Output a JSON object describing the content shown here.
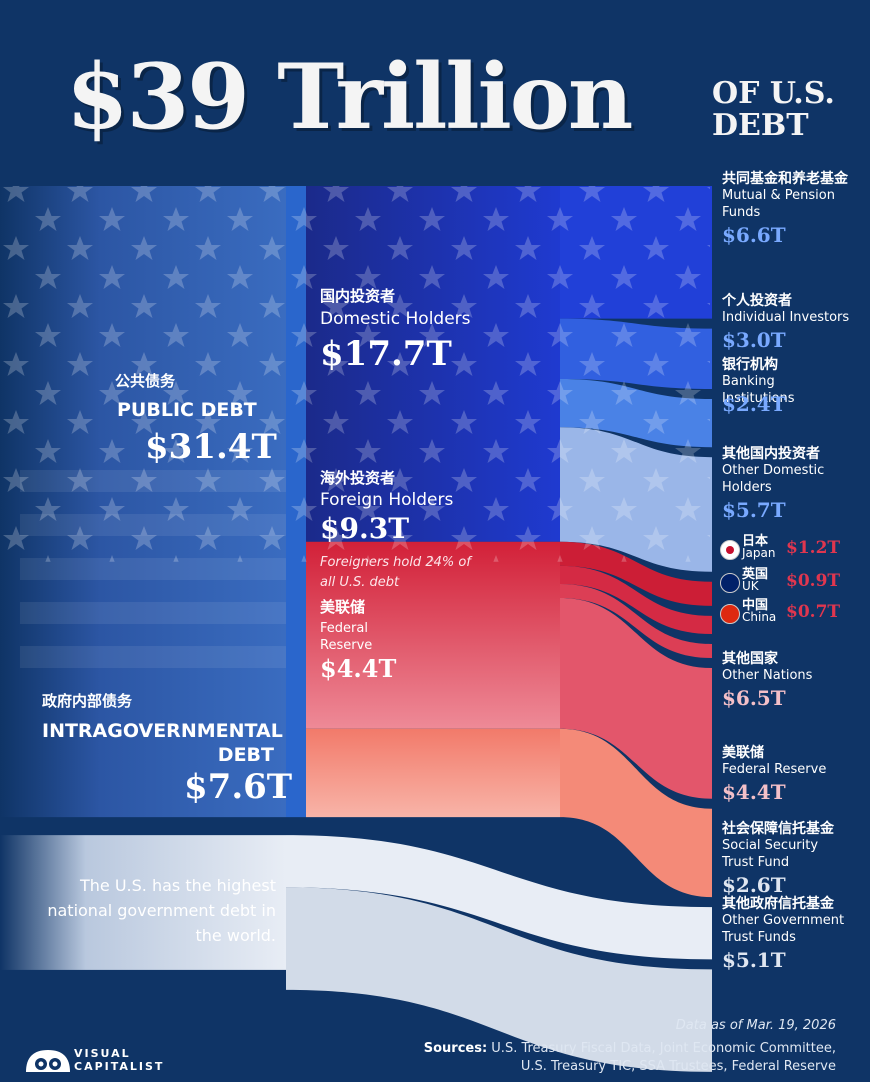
{
  "title": {
    "main": "$39 Trillion",
    "sub": "OF U.S. DEBT"
  },
  "chart_data": {
    "type": "sankey",
    "unit": "$ Trillions",
    "total": 39,
    "nodes": [
      {
        "id": "public",
        "zh": "公共债务",
        "en": "PUBLIC DEBT",
        "value": 31.4,
        "label": "$31.4T"
      },
      {
        "id": "intra",
        "zh": "政府内部债务",
        "en": "INTRAGOVERNMENTAL DEBT",
        "value": 7.6,
        "label": "$7.6T"
      },
      {
        "id": "domestic",
        "zh": "国内投资者",
        "en": "Domestic Holders",
        "value": 17.7,
        "label": "$17.7T"
      },
      {
        "id": "foreign",
        "zh": "海外投资者",
        "en": "Foreign Holders",
        "value": 9.3,
        "label": "$9.3T",
        "note": "Foreigners hold 24% of all U.S. debt"
      },
      {
        "id": "fed_mid",
        "zh": "美联储",
        "en": "Federal Reserve",
        "value": 4.4,
        "label": "$4.4T"
      }
    ],
    "holders": [
      {
        "zh": "共同基金和养老基金",
        "en": "Mutual & Pension Funds",
        "value": 6.6,
        "label": "$6.6T",
        "group": "domestic"
      },
      {
        "zh": "个人投资者",
        "en": "Individual Investors",
        "value": 3.0,
        "label": "$3.0T",
        "group": "domestic"
      },
      {
        "zh": "银行机构",
        "en": "Banking Institutions",
        "value": 2.4,
        "label": "$2.4T",
        "group": "domestic"
      },
      {
        "zh": "其他国内投资者",
        "en": "Other Domestic Holders",
        "value": 5.7,
        "label": "$5.7T",
        "group": "domestic"
      },
      {
        "zh": "日本",
        "en": "Japan",
        "value": 1.2,
        "label": "$1.2T",
        "group": "foreign"
      },
      {
        "zh": "英国",
        "en": "UK",
        "value": 0.9,
        "label": "$0.9T",
        "group": "foreign"
      },
      {
        "zh": "中国",
        "en": "China",
        "value": 0.7,
        "label": "$0.7T",
        "group": "foreign"
      },
      {
        "zh": "其他国家",
        "en": "Other Nations",
        "value": 6.5,
        "label": "$6.5T",
        "group": "foreign"
      },
      {
        "zh": "美联储",
        "en": "Federal Reserve",
        "value": 4.4,
        "label": "$4.4T",
        "group": "fed"
      },
      {
        "zh": "社会保障信托基金",
        "en": "Social Security Trust Fund",
        "value": 2.6,
        "label": "$2.6T",
        "group": "intra"
      },
      {
        "zh": "其他政府信托基金",
        "en": "Other Government Trust Funds",
        "value": 5.1,
        "label": "$5.1T",
        "group": "intra"
      }
    ]
  },
  "callout": "The U.S. has the highest national government debt in the world.",
  "footer": {
    "date": "Data as of Mar. 19, 2026",
    "sources_label": "Sources:",
    "sources_line1": "U.S. Treasury Fiscal Data, Joint Economic Committee,",
    "sources_line2": "U.S. Treasury TIC, SSA Trustees, Federal Reserve",
    "logo_line1": "VISUAL",
    "logo_line2": "CAPITALIST"
  },
  "colors": {
    "background": "#0f3466",
    "domestic_dark": "#1a2f9c",
    "domestic_light": "#9ab6e8",
    "foreign": "#d42a44",
    "foreign_light": "#f2b0b8",
    "fed": "#f48a78",
    "intra": "#dfe6f1",
    "accent_blue": "#79a9ff",
    "accent_red": "#e0364f",
    "accent_pink": "#f4c0c8"
  }
}
